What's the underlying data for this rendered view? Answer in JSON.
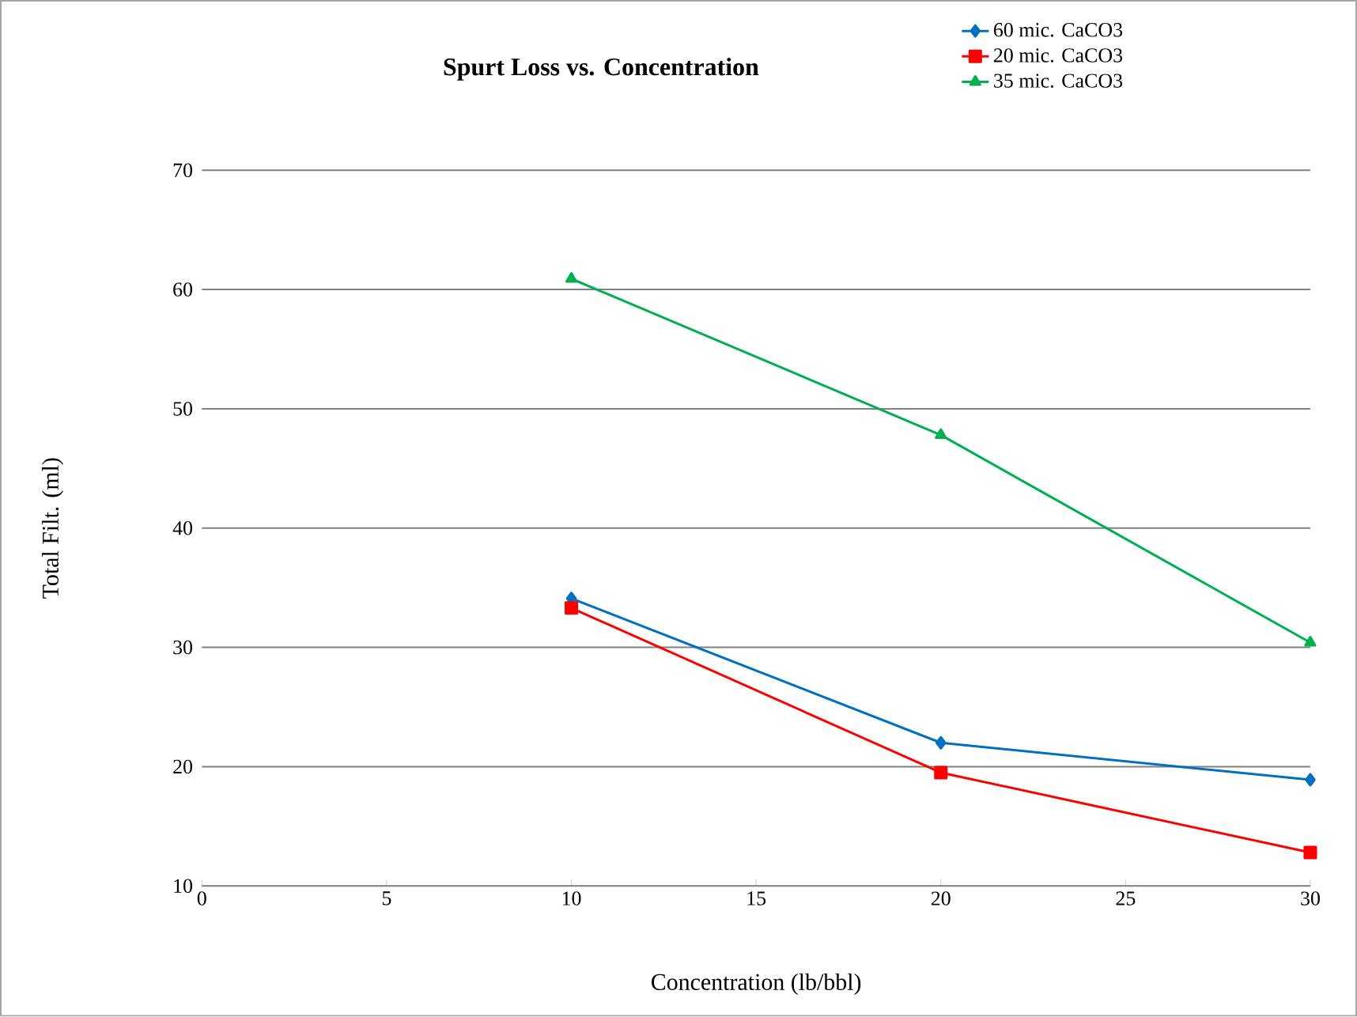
{
  "chart_data": {
    "type": "line",
    "title": "Spurt Loss vs. Concentration",
    "xlabel": "Concentration (lb/bbl)",
    "ylabel": "Total Filt. (ml)",
    "x": [
      10,
      20,
      30
    ],
    "series": [
      {
        "name": "60 mic. CaCO3",
        "color": "#0070c0",
        "marker": "diamond",
        "values": [
          34.1,
          22.0,
          18.9
        ]
      },
      {
        "name": "20 mic. CaCO3",
        "color": "#ff0000",
        "marker": "square",
        "values": [
          33.3,
          19.5,
          12.8
        ]
      },
      {
        "name": "35 mic. CaCO3",
        "color": "#00b050",
        "marker": "triangle",
        "values": [
          60.9,
          47.8,
          30.4
        ]
      }
    ],
    "xlim": [
      0,
      30
    ],
    "xticks": [
      0,
      5,
      10,
      15,
      20,
      25,
      30
    ],
    "ylim": [
      10,
      70
    ],
    "yticks": [
      10,
      20,
      30,
      40,
      50,
      60,
      70
    ],
    "grid": "y",
    "legend": "top right"
  }
}
